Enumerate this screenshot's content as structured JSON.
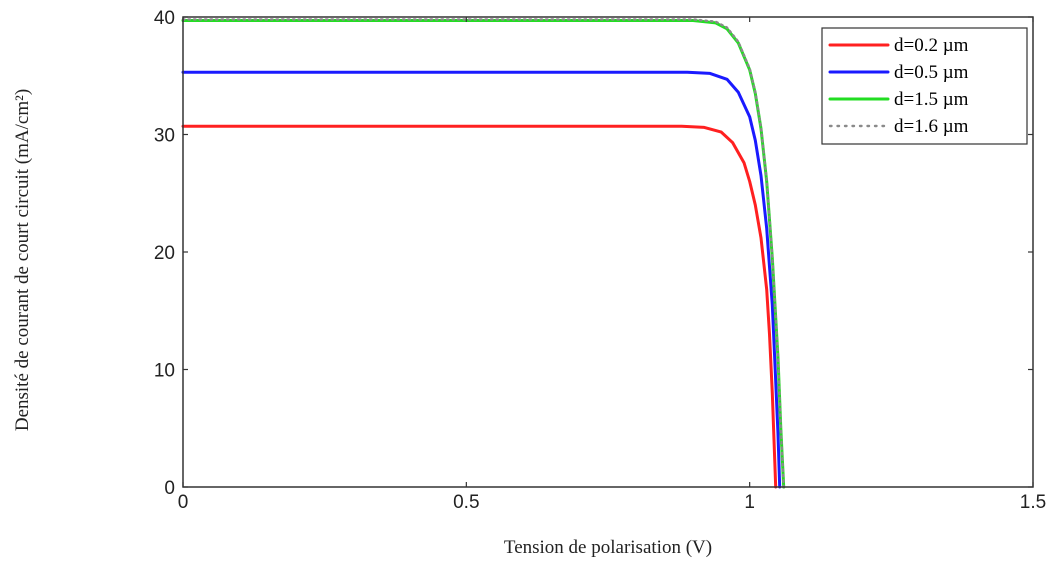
{
  "chart_data": {
    "type": "line",
    "title": "",
    "xlabel": "Tension de polarisation (V)",
    "ylabel": "Densité de courant de court circuit (mA/cm²)",
    "xlim": [
      0,
      1.5
    ],
    "ylim": [
      0,
      40
    ],
    "xticks": [
      0,
      0.5,
      1,
      1.5
    ],
    "xtick_labels": [
      "0",
      "0.5",
      "1",
      "1.5"
    ],
    "yticks": [
      0,
      10,
      20,
      30,
      40
    ],
    "ytick_labels": [
      "0",
      "10",
      "20",
      "30",
      "40"
    ],
    "grid": false,
    "legend_position": "top-right",
    "series": [
      {
        "name": "d=0.2 µm",
        "color": "#ff2020",
        "style": "solid",
        "points": [
          [
            0,
            30.7
          ],
          [
            0.3,
            30.7
          ],
          [
            0.6,
            30.7
          ],
          [
            0.8,
            30.7
          ],
          [
            0.88,
            30.7
          ],
          [
            0.92,
            30.6
          ],
          [
            0.95,
            30.2
          ],
          [
            0.97,
            29.3
          ],
          [
            0.99,
            27.6
          ],
          [
            1.0,
            26.0
          ],
          [
            1.01,
            24.0
          ],
          [
            1.02,
            21.2
          ],
          [
            1.03,
            16.8
          ],
          [
            1.035,
            13.0
          ],
          [
            1.04,
            8.0
          ],
          [
            1.043,
            4.0
          ],
          [
            1.046,
            0
          ]
        ]
      },
      {
        "name": "d=0.5 µm",
        "color": "#1a1aff",
        "style": "solid",
        "points": [
          [
            0,
            35.3
          ],
          [
            0.3,
            35.3
          ],
          [
            0.6,
            35.3
          ],
          [
            0.8,
            35.3
          ],
          [
            0.89,
            35.3
          ],
          [
            0.93,
            35.2
          ],
          [
            0.96,
            34.7
          ],
          [
            0.98,
            33.6
          ],
          [
            1.0,
            31.5
          ],
          [
            1.01,
            29.5
          ],
          [
            1.02,
            26.5
          ],
          [
            1.03,
            22.0
          ],
          [
            1.04,
            15.5
          ],
          [
            1.045,
            10.0
          ],
          [
            1.05,
            4.5
          ],
          [
            1.053,
            0
          ]
        ]
      },
      {
        "name": "d=1.5 µm",
        "color": "#22dd22",
        "style": "solid",
        "points": [
          [
            0,
            39.7
          ],
          [
            0.3,
            39.7
          ],
          [
            0.6,
            39.7
          ],
          [
            0.8,
            39.7
          ],
          [
            0.9,
            39.7
          ],
          [
            0.94,
            39.5
          ],
          [
            0.96,
            39.0
          ],
          [
            0.98,
            37.8
          ],
          [
            1.0,
            35.5
          ],
          [
            1.01,
            33.5
          ],
          [
            1.02,
            30.5
          ],
          [
            1.03,
            26.0
          ],
          [
            1.04,
            19.5
          ],
          [
            1.05,
            11.0
          ],
          [
            1.055,
            5.0
          ],
          [
            1.06,
            0
          ]
        ]
      },
      {
        "name": "d=1.6 µm",
        "color": "#8a8a8a",
        "style": "dotted",
        "points": [
          [
            0,
            39.8
          ],
          [
            0.3,
            39.8
          ],
          [
            0.6,
            39.8
          ],
          [
            0.8,
            39.8
          ],
          [
            0.9,
            39.8
          ],
          [
            0.94,
            39.6
          ],
          [
            0.96,
            39.1
          ],
          [
            0.98,
            37.9
          ],
          [
            1.0,
            35.6
          ],
          [
            1.01,
            33.6
          ],
          [
            1.02,
            30.6
          ],
          [
            1.03,
            26.1
          ],
          [
            1.04,
            19.6
          ],
          [
            1.05,
            11.1
          ],
          [
            1.055,
            5.1
          ],
          [
            1.06,
            0
          ]
        ]
      }
    ]
  }
}
